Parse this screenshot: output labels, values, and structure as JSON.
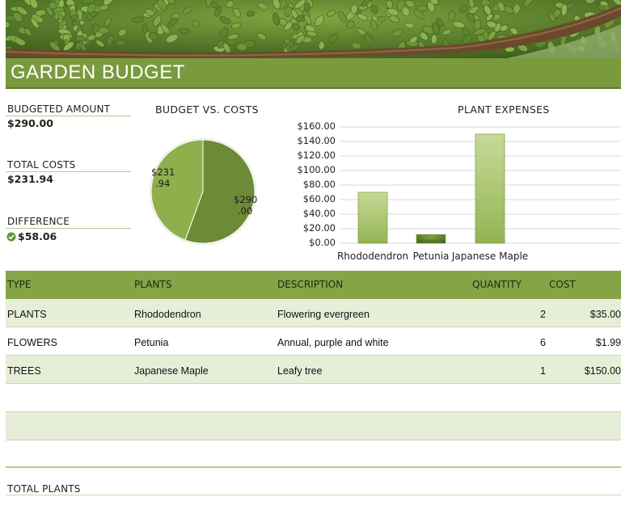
{
  "sheet": {
    "title": "GARDEN BUDGET"
  },
  "summary": {
    "budgeted_label": "BUDGETED AMOUNT",
    "budgeted_value": "$290.00",
    "total_costs_label": "TOTAL COSTS",
    "total_costs_value": "$231.94",
    "difference_label": "DIFFERENCE",
    "difference_value": "$58.06",
    "difference_icon": "check-circle-icon",
    "difference_icon_color": "#5a9a3a"
  },
  "colors": {
    "accent": "#7a9a3e",
    "header_fill": "#85a447",
    "band_fill": "#e6eed8",
    "bar_fill": "#a9c46a",
    "pie_budget": "#6d8a36",
    "pie_costs": "#8fae4c"
  },
  "chart_data": [
    {
      "type": "pie",
      "title": "BUDGET VS. COSTS",
      "categories": [
        "Total Costs",
        "Budgeted Amount"
      ],
      "values": [
        231.94,
        290.0
      ],
      "data_labels": [
        "$231\n.94",
        "$290\n.00"
      ]
    },
    {
      "type": "bar",
      "title": "PLANT EXPENSES",
      "categories": [
        "Rhododendron",
        "Petunia",
        "Japanese Maple"
      ],
      "values": [
        70,
        12,
        150
      ],
      "ylim": [
        0,
        160
      ],
      "yticks": [
        "$160.00",
        "$140.00",
        "$120.00",
        "$100.00",
        "$80.00",
        "$60.00",
        "$40.00",
        "$20.00",
        "$0.00"
      ],
      "grid": true
    }
  ],
  "table": {
    "headers": {
      "type": "TYPE",
      "plants": "PLANTS",
      "description": "DESCRIPTION",
      "quantity": "QUANTITY",
      "cost": "COST"
    },
    "rows": [
      {
        "type": "PLANTS",
        "plants": "Rhododendron",
        "description": "Flowering evergreen",
        "quantity": "2",
        "cost": "$35.00"
      },
      {
        "type": "FLOWERS",
        "plants": "Petunia",
        "description": "Annual, purple and white",
        "quantity": "6",
        "cost": "$1.99"
      },
      {
        "type": "TREES",
        "plants": "Japanese Maple",
        "description": "Leafy tree",
        "quantity": "1",
        "cost": "$150.00"
      }
    ],
    "total_label": "TOTAL PLANTS"
  }
}
